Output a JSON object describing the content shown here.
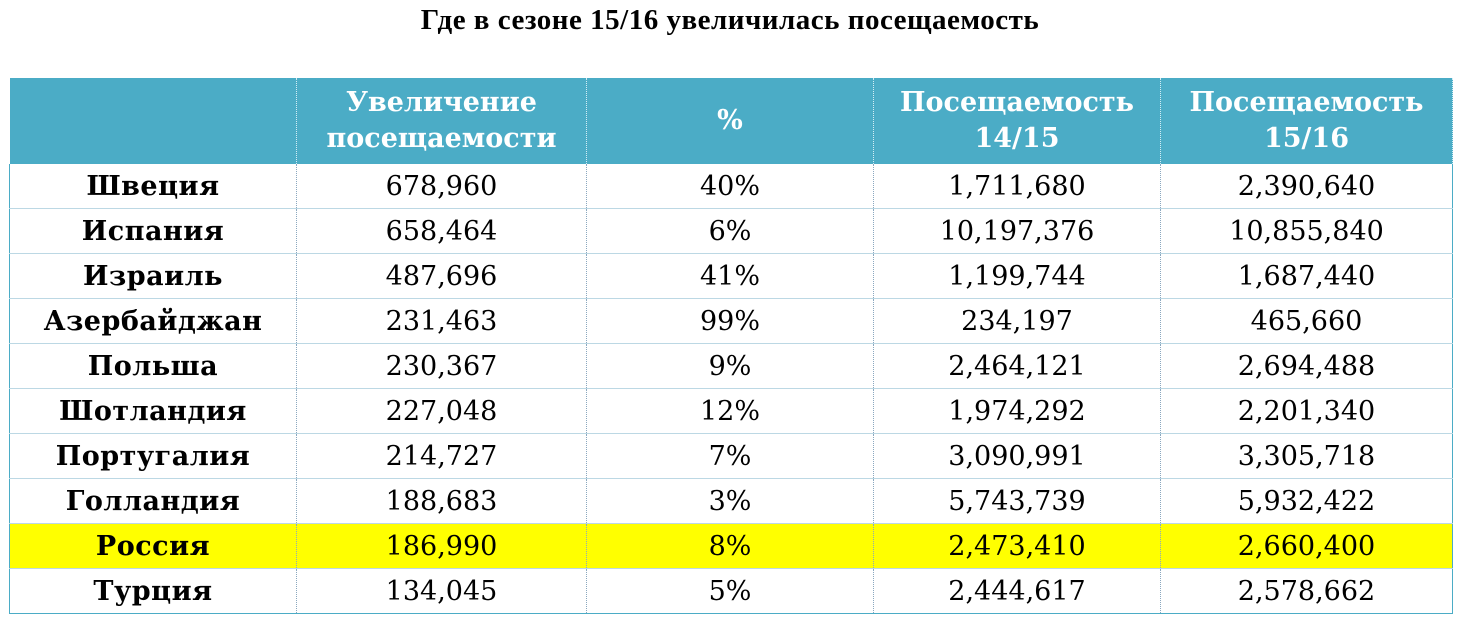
{
  "title": "Где в сезоне 15/16 увеличилась посещаемость",
  "colors": {
    "header_bg": "#4bacc6",
    "header_text": "#ffffff",
    "highlight_row": "#ffff00"
  },
  "table": {
    "headers": [
      "",
      "Увеличение посещаемости",
      "%",
      "Посещаемость 14/15",
      "Посещаемость 15/16"
    ],
    "highlighted_row_index": 8,
    "rows": [
      [
        "Швеция",
        "678,960",
        "40%",
        "1,711,680",
        "2,390,640"
      ],
      [
        "Испания",
        "658,464",
        "6%",
        "10,197,376",
        "10,855,840"
      ],
      [
        "Израиль",
        "487,696",
        "41%",
        "1,199,744",
        "1,687,440"
      ],
      [
        "Азербайджан",
        "231,463",
        "99%",
        "234,197",
        "465,660"
      ],
      [
        "Польша",
        "230,367",
        "9%",
        "2,464,121",
        "2,694,488"
      ],
      [
        "Шотландия",
        "227,048",
        "12%",
        "1,974,292",
        "2,201,340"
      ],
      [
        "Португалия",
        "214,727",
        "7%",
        "3,090,991",
        "3,305,718"
      ],
      [
        "Голландия",
        "188,683",
        "3%",
        "5,743,739",
        "5,932,422"
      ],
      [
        "Россия",
        "186,990",
        "8%",
        "2,473,410",
        "2,660,400"
      ],
      [
        "Турция",
        "134,045",
        "5%",
        "2,444,617",
        "2,578,662"
      ]
    ]
  }
}
